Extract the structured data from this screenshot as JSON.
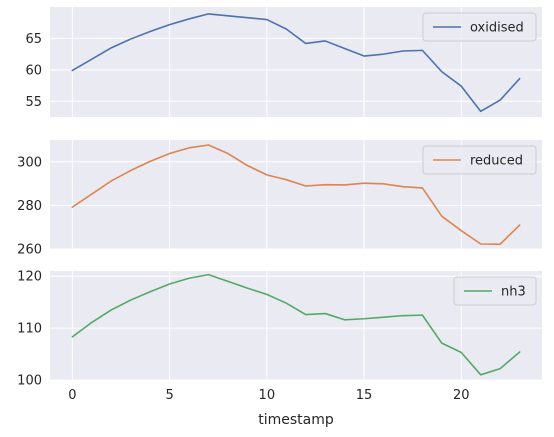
{
  "chart_data": {
    "type": "line",
    "xlabel": "timestamp",
    "x_ticks": [
      0,
      5,
      10,
      15,
      20
    ],
    "x": [
      0,
      1,
      2,
      3,
      4,
      5,
      6,
      7,
      8,
      9,
      10,
      11,
      12,
      13,
      14,
      15,
      16,
      17,
      18,
      19,
      20,
      21,
      22,
      23
    ],
    "xlim": [
      -1.15,
      24.15
    ],
    "grid": true,
    "legend_placement": "top-right",
    "panels": [
      {
        "name": "oxidised",
        "color": "#4c72b0",
        "ylim": [
          52.5,
          70
        ],
        "y_ticks": [
          55,
          60,
          65
        ],
        "values": [
          59.9,
          61.7,
          63.5,
          64.9,
          66.1,
          67.2,
          68.1,
          68.9,
          68.6,
          68.3,
          68.0,
          66.5,
          64.2,
          64.6,
          63.4,
          62.2,
          62.5,
          63.0,
          63.1,
          59.7,
          57.4,
          53.4,
          55.2,
          58.6
        ]
      },
      {
        "name": "reduced",
        "color": "#dd8452",
        "ylim": [
          260,
          310
        ],
        "y_ticks": [
          260,
          280,
          300
        ],
        "values": [
          279.2,
          285.2,
          291.2,
          296.0,
          300.2,
          303.8,
          306.4,
          307.7,
          303.8,
          298.3,
          294.0,
          291.8,
          288.9,
          289.5,
          289.4,
          290.2,
          289.9,
          288.6,
          288.0,
          275.0,
          268.4,
          262.3,
          262.2,
          271.0
        ]
      },
      {
        "name": "nh3",
        "color": "#55a868",
        "ylim": [
          100,
          121
        ],
        "y_ticks": [
          100,
          110,
          120
        ],
        "values": [
          108.3,
          111.1,
          113.5,
          115.4,
          117.0,
          118.5,
          119.6,
          120.3,
          119.0,
          117.7,
          116.5,
          114.8,
          112.6,
          112.8,
          111.6,
          111.8,
          112.1,
          112.4,
          112.5,
          107.1,
          105.3,
          101.0,
          102.2,
          105.4
        ]
      }
    ]
  }
}
